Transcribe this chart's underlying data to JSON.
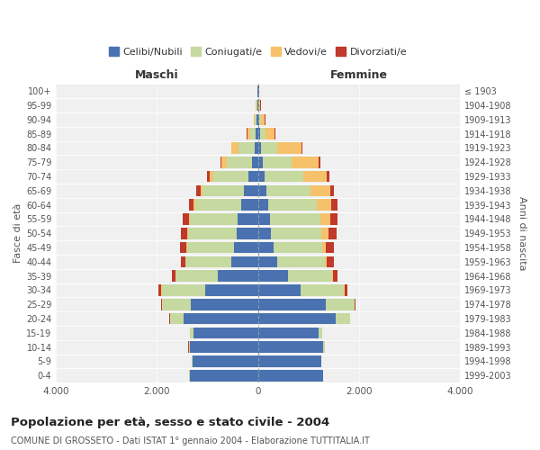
{
  "age_groups": [
    "0-4",
    "5-9",
    "10-14",
    "15-19",
    "20-24",
    "25-29",
    "30-34",
    "35-39",
    "40-44",
    "45-49",
    "50-54",
    "55-59",
    "60-64",
    "65-69",
    "70-74",
    "75-79",
    "80-84",
    "85-89",
    "90-94",
    "95-99",
    "100+"
  ],
  "birth_years": [
    "1999-2003",
    "1994-1998",
    "1989-1993",
    "1984-1988",
    "1979-1983",
    "1974-1978",
    "1969-1973",
    "1964-1968",
    "1959-1963",
    "1954-1958",
    "1949-1953",
    "1944-1948",
    "1939-1943",
    "1934-1938",
    "1929-1933",
    "1924-1928",
    "1919-1923",
    "1914-1918",
    "1909-1913",
    "1904-1908",
    "≤ 1903"
  ],
  "maschi": {
    "celibi": [
      1350,
      1300,
      1350,
      1280,
      1480,
      1330,
      1040,
      790,
      520,
      470,
      420,
      400,
      340,
      270,
      190,
      110,
      70,
      45,
      25,
      12,
      5
    ],
    "coniugati": [
      10,
      15,
      25,
      70,
      260,
      570,
      870,
      840,
      910,
      940,
      960,
      950,
      900,
      820,
      700,
      510,
      310,
      110,
      40,
      15,
      5
    ],
    "vedovi": [
      0,
      0,
      0,
      0,
      5,
      5,
      5,
      5,
      5,
      10,
      15,
      20,
      30,
      50,
      70,
      100,
      140,
      55,
      20,
      10,
      5
    ],
    "divorziati": [
      0,
      0,
      2,
      5,
      10,
      20,
      50,
      70,
      100,
      130,
      140,
      130,
      100,
      80,
      50,
      20,
      15,
      10,
      5,
      3,
      2
    ]
  },
  "femmine": {
    "nubili": [
      1290,
      1250,
      1300,
      1200,
      1540,
      1340,
      840,
      590,
      390,
      310,
      260,
      240,
      200,
      170,
      140,
      90,
      60,
      35,
      20,
      8,
      3
    ],
    "coniugate": [
      10,
      15,
      25,
      70,
      280,
      570,
      870,
      880,
      930,
      960,
      990,
      1000,
      960,
      870,
      760,
      570,
      320,
      110,
      40,
      15,
      5
    ],
    "vedove": [
      0,
      0,
      0,
      0,
      5,
      5,
      10,
      20,
      50,
      80,
      150,
      200,
      300,
      390,
      470,
      550,
      490,
      190,
      75,
      25,
      8
    ],
    "divorziate": [
      0,
      0,
      2,
      5,
      10,
      20,
      60,
      95,
      130,
      155,
      160,
      140,
      110,
      80,
      50,
      30,
      20,
      15,
      8,
      5,
      2
    ]
  },
  "colors": {
    "celibi_nubili": "#4a72b0",
    "coniugati": "#c5d9a0",
    "vedovi": "#f5c26b",
    "divorziati": "#c0392b"
  },
  "title": "Popolazione per età, sesso e stato civile - 2004",
  "subtitle": "COMUNE DI GROSSETO - Dati ISTAT 1° gennaio 2004 - Elaborazione TUTTITALIA.IT",
  "xlabel_left": "Maschi",
  "xlabel_right": "Femmine",
  "ylabel_left": "Fasce di età",
  "ylabel_right": "Anni di nascita",
  "xlim": 4000,
  "legend_labels": [
    "Celibi/Nubili",
    "Coniugati/e",
    "Vedovi/e",
    "Divorziati/e"
  ],
  "bg_color": "#f0f0f0",
  "fig_bg_color": "#ffffff"
}
